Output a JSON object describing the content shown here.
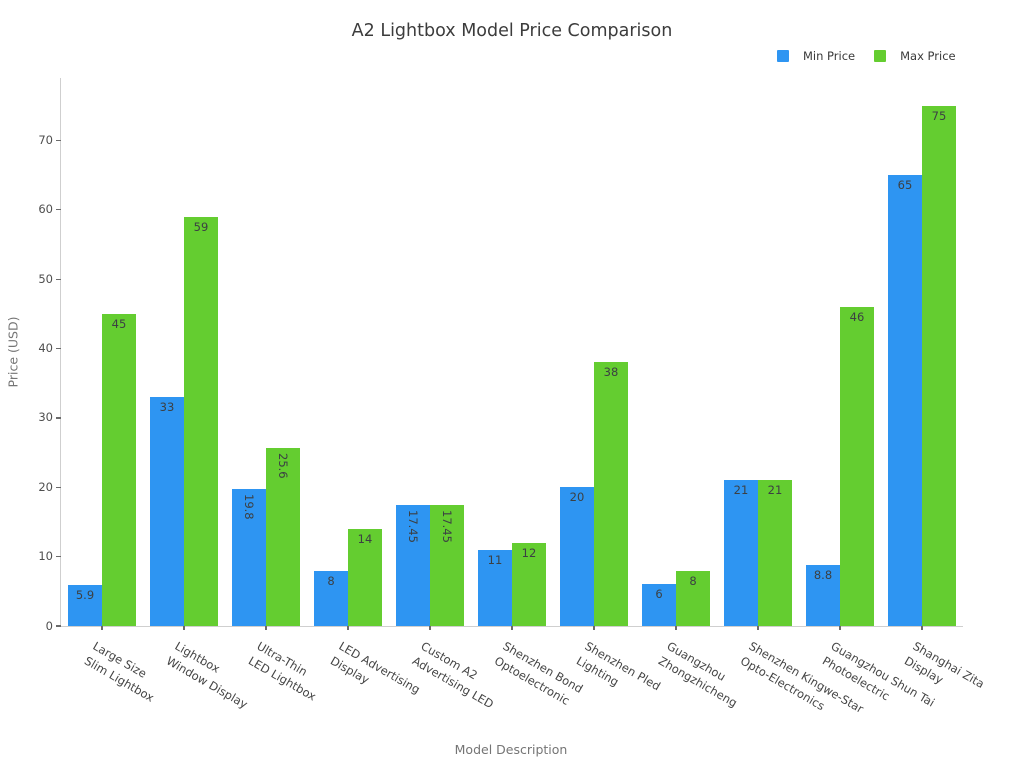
{
  "chart_data": {
    "type": "bar",
    "title": "A2 Lightbox Model Price Comparison",
    "xlabel": "Model Description",
    "ylabel": "Price (USD)",
    "ylim": [
      0,
      79
    ],
    "yticks": [
      0,
      10,
      20,
      30,
      40,
      50,
      60,
      70
    ],
    "grid": false,
    "legend_position": "top-right",
    "categories": [
      [
        "Large Size",
        "Slim Lightbox"
      ],
      [
        "Lightbox",
        "Window Display"
      ],
      [
        "Ultra-Thin",
        "LED Lightbox"
      ],
      [
        "LED Advertising",
        "Display"
      ],
      [
        "Custom A2",
        "Advertising LED"
      ],
      [
        "Shenzhen Bond",
        "Optoelectronic"
      ],
      [
        "Shenzhen Pled",
        "Lighting"
      ],
      [
        "Guangzhou",
        "Zhongzhicheng"
      ],
      [
        "Shenzhen Kingwe-Star",
        "Opto-Electronics"
      ],
      [
        "Guangzhou Shun Tai",
        "Photoelectric"
      ],
      [
        "Shanghai Zita",
        "Display"
      ]
    ],
    "series": [
      {
        "name": "Min Price",
        "color": "#2e95f2",
        "values": [
          5.9,
          33,
          19.8,
          8,
          17.45,
          11,
          20,
          6,
          21,
          8.8,
          65
        ]
      },
      {
        "name": "Max Price",
        "color": "#64cd30",
        "values": [
          45,
          59,
          25.6,
          14,
          17.45,
          12,
          38,
          8,
          21,
          46,
          75
        ]
      }
    ]
  }
}
